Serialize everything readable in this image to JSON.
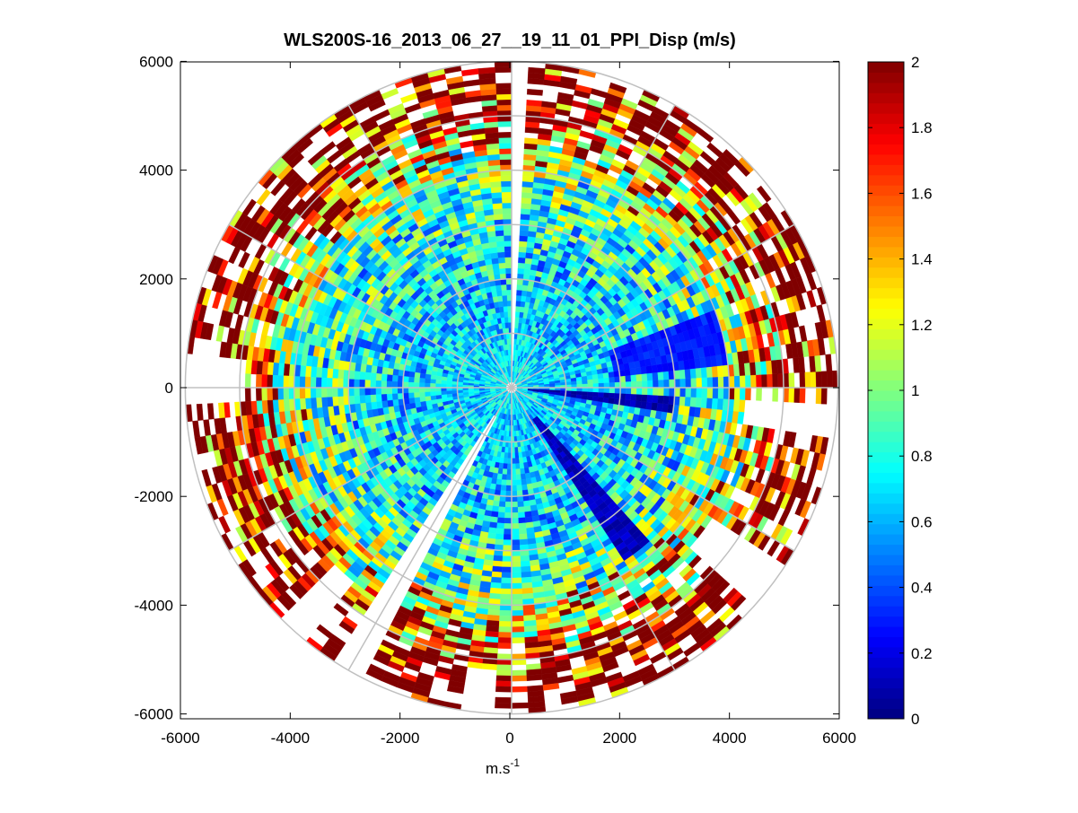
{
  "chart_data": {
    "type": "heatmap",
    "projection": "polar-ppi",
    "title": "WLS200S-16_2013_06_27__19_11_01_PPI_Disp (m/s)",
    "xlabel": "m.s",
    "xlabel_sup": "-1",
    "ylabel": "",
    "xlim": [
      -6000,
      6000
    ],
    "ylim": [
      -6000,
      6000
    ],
    "xticks": [
      "-6000",
      "-4000",
      "-2000",
      "0",
      "2000",
      "4000",
      "6000"
    ],
    "yticks": [
      "6000",
      "4000",
      "2000",
      "0",
      "-2000",
      "-4000",
      "-6000"
    ],
    "xtick_values": [
      -6000,
      -4000,
      -2000,
      0,
      2000,
      4000,
      6000
    ],
    "ytick_values": [
      6000,
      4000,
      2000,
      0,
      -2000,
      -4000,
      -6000
    ],
    "polar_grid": {
      "rings": [
        1000,
        2000,
        3000,
        4000,
        5000,
        6000
      ],
      "spokes_deg": [
        0,
        30,
        60,
        90,
        120,
        150,
        180,
        210,
        240,
        270,
        300,
        330
      ]
    },
    "colorbar": {
      "colormap": "jet",
      "clim": [
        0,
        2
      ],
      "ticks": [
        "0",
        "0.2",
        "0.4",
        "0.6",
        "0.8",
        "1",
        "1.2",
        "1.4",
        "1.6",
        "1.8",
        "2"
      ],
      "tick_values": [
        0,
        0.2,
        0.4,
        0.6,
        0.8,
        1,
        1.2,
        1.4,
        1.6,
        1.8,
        2
      ]
    },
    "azimuth_step_deg": 3,
    "range_step_m": 100,
    "max_range_m": 6000,
    "mean_profile_per_500m": [
      0.7,
      0.65,
      0.65,
      0.68,
      0.7,
      0.75,
      0.82,
      0.92,
      1.1,
      1.35,
      1.6,
      1.75
    ],
    "low_value_sectors": [
      {
        "az_from": -9,
        "az_to": -3,
        "r_from": 300,
        "r_to": 3000,
        "value": 0.1
      },
      {
        "az_from": -57,
        "az_to": -49,
        "r_from": 700,
        "r_to": 3800,
        "value": 0.12
      },
      {
        "az_from": 6,
        "az_to": 21,
        "r_from": 1900,
        "r_to": 4000,
        "value": 0.3
      }
    ],
    "no_data_sectors": [
      {
        "az_from": 88.5,
        "az_to": 90,
        "r_from": 0,
        "r_to": 6000
      },
      {
        "az_from": 238,
        "az_to": 244,
        "r_from": 600,
        "r_to": 6000
      },
      {
        "az_from": -42,
        "az_to": -33,
        "r_from": 4400,
        "r_to": 6000
      },
      {
        "az_from": 174,
        "az_to": 183,
        "r_from": 4900,
        "r_to": 6000
      },
      {
        "az_from": -9,
        "az_to": -3,
        "r_from": 4300,
        "r_to": 6000
      },
      {
        "az_from": 262,
        "az_to": 268,
        "r_from": 5200,
        "r_to": 6000
      },
      {
        "az_from": 225,
        "az_to": 231,
        "r_from": 4600,
        "r_to": 6000
      }
    ]
  }
}
